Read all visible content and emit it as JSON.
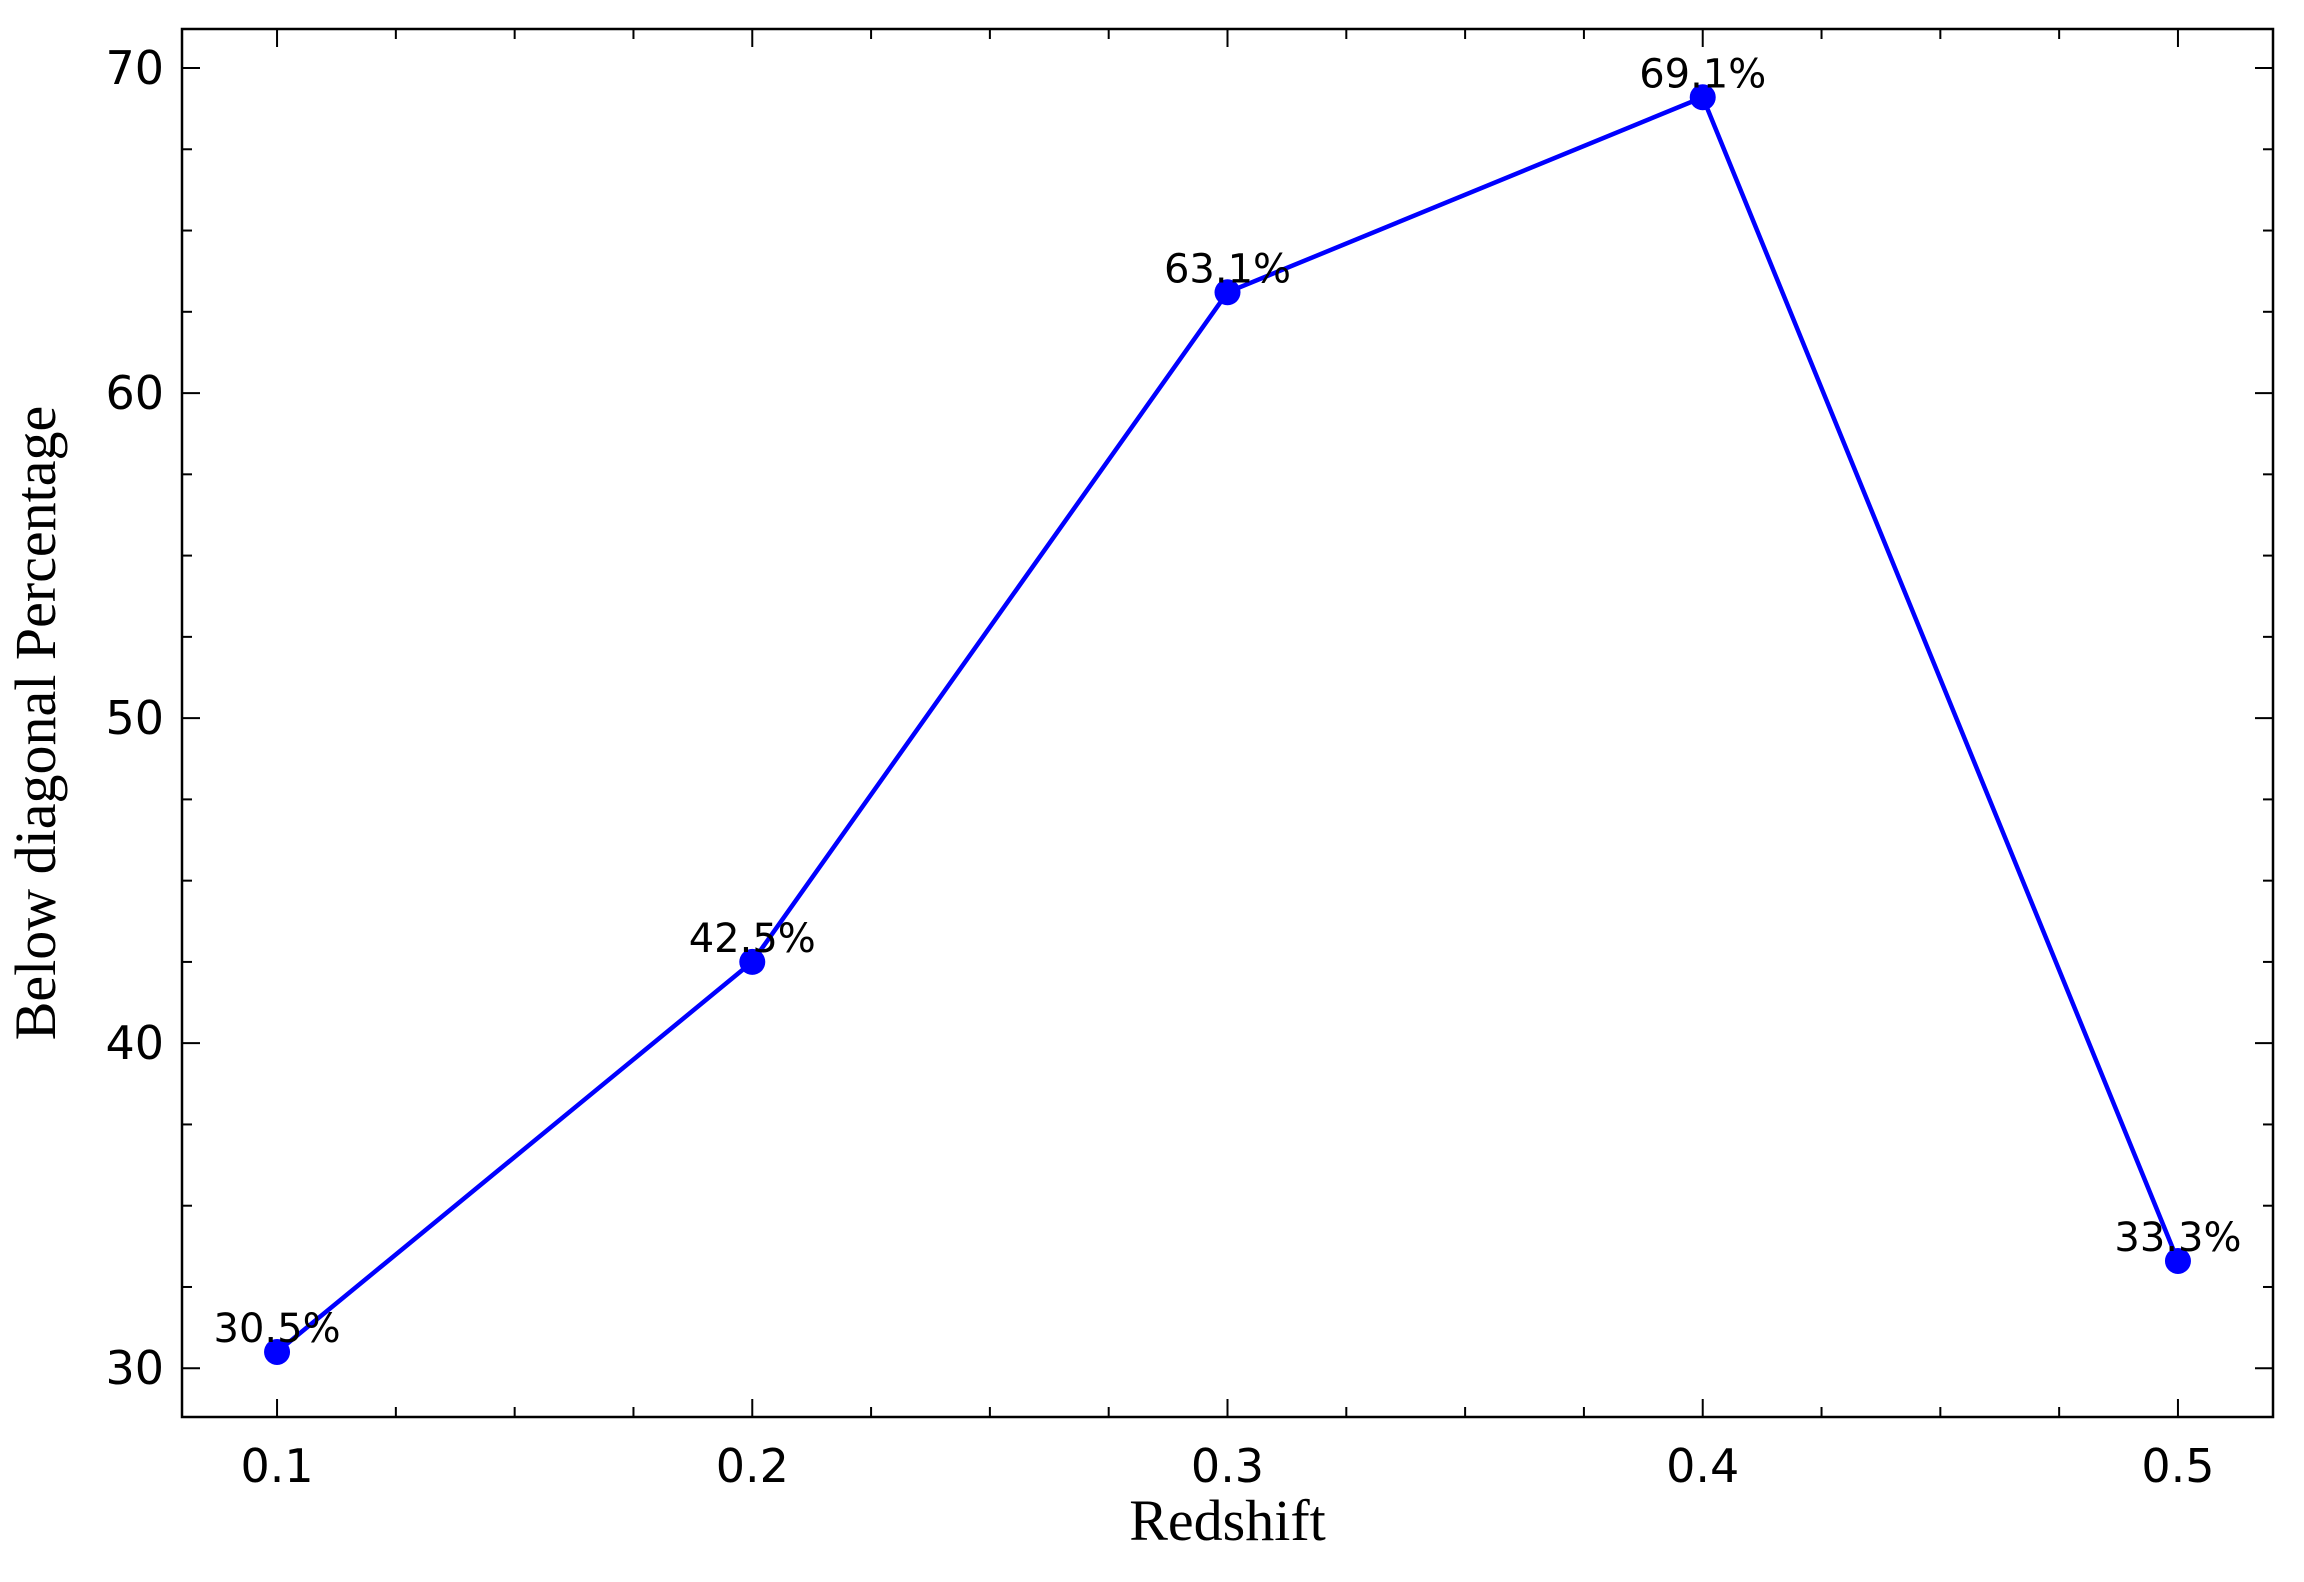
{
  "chart_data": {
    "type": "line",
    "title": "",
    "xlabel": "Redshift",
    "ylabel": "Below diagonal Percentage",
    "x": [
      0.1,
      0.2,
      0.3,
      0.4,
      0.5
    ],
    "series": [
      {
        "values": [
          30.5,
          42.5,
          63.1,
          69.1,
          33.3
        ],
        "labels": [
          "30.5%",
          "42.5%",
          "63.1%",
          "69.1%",
          "33.3%"
        ],
        "color": "#0000ff"
      }
    ],
    "xlim": [
      0.08,
      0.52
    ],
    "ylim": [
      28.5,
      71.2
    ],
    "x_ticks": [
      0.1,
      0.2,
      0.3,
      0.4,
      0.5
    ],
    "x_tick_labels": [
      "0.1",
      "0.2",
      "0.3",
      "0.4",
      "0.5"
    ],
    "x_minor_ticks": [
      0.125,
      0.15,
      0.175,
      0.225,
      0.25,
      0.275,
      0.325,
      0.35,
      0.375,
      0.425,
      0.45,
      0.475
    ],
    "y_ticks": [
      30,
      40,
      50,
      60,
      70
    ],
    "y_tick_labels": [
      "30",
      "40",
      "50",
      "60",
      "70"
    ],
    "y_minor_ticks": [
      32.5,
      35,
      37.5,
      42.5,
      45,
      47.5,
      52.5,
      55,
      57.5,
      62.5,
      65,
      67.5
    ],
    "grid": false,
    "legend": "none"
  }
}
